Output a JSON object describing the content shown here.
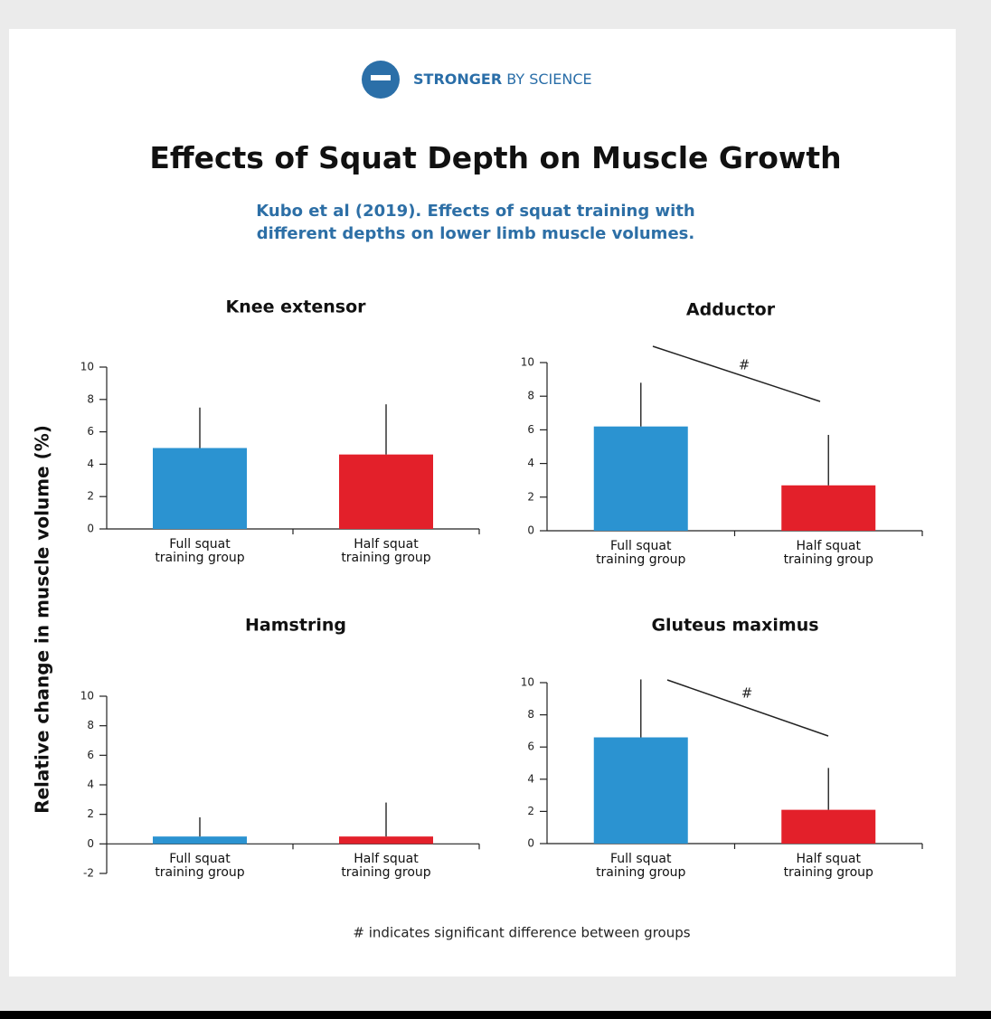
{
  "header": {
    "brand_bold": "STRONGER",
    "brand_rest": "BY SCIENCE",
    "title": "Effects of Squat Depth on Muscle Growth",
    "subtitle": "Kubo et al (2019). Effects of squat training with different depths on lower limb muscle volumes."
  },
  "y_axis_label": "Relative change in muscle volume (%)",
  "footnote": "# indicates significant difference between groups",
  "chart_data": [
    {
      "type": "bar",
      "title": "Knee extensor",
      "categories": [
        "Full squat training group",
        "Half squat training group"
      ],
      "values": [
        5.0,
        4.6
      ],
      "errors": [
        2.5,
        3.1
      ],
      "colors": [
        "#2b93d1",
        "#e3202a"
      ],
      "ylim": [
        0,
        10
      ],
      "yticks": [
        0,
        2,
        4,
        6,
        8,
        10
      ]
    },
    {
      "type": "bar",
      "title": "Adductor",
      "categories": [
        "Full squat training group",
        "Half squat training group"
      ],
      "values": [
        6.2,
        2.7
      ],
      "errors": [
        2.6,
        3.0
      ],
      "colors": [
        "#2b93d1",
        "#e3202a"
      ],
      "ylim": [
        0,
        10
      ],
      "yticks": [
        0,
        2,
        4,
        6,
        8,
        10
      ],
      "annotation": "#"
    },
    {
      "type": "bar",
      "title": "Hamstring",
      "categories": [
        "Full squat training group",
        "Half squat training group"
      ],
      "values": [
        0.5,
        0.5
      ],
      "errors": [
        1.3,
        2.3
      ],
      "colors": [
        "#2b93d1",
        "#e3202a"
      ],
      "ylim": [
        -2,
        10
      ],
      "yticks": [
        -2,
        0,
        2,
        4,
        6,
        8,
        10
      ]
    },
    {
      "type": "bar",
      "title": "Gluteus maximus",
      "categories": [
        "Full squat training group",
        "Half squat training group"
      ],
      "values": [
        6.6,
        2.1
      ],
      "errors": [
        3.6,
        2.6
      ],
      "colors": [
        "#2b93d1",
        "#e3202a"
      ],
      "ylim": [
        0,
        10
      ],
      "yticks": [
        0,
        2,
        4,
        6,
        8,
        10
      ],
      "annotation": "#"
    }
  ]
}
